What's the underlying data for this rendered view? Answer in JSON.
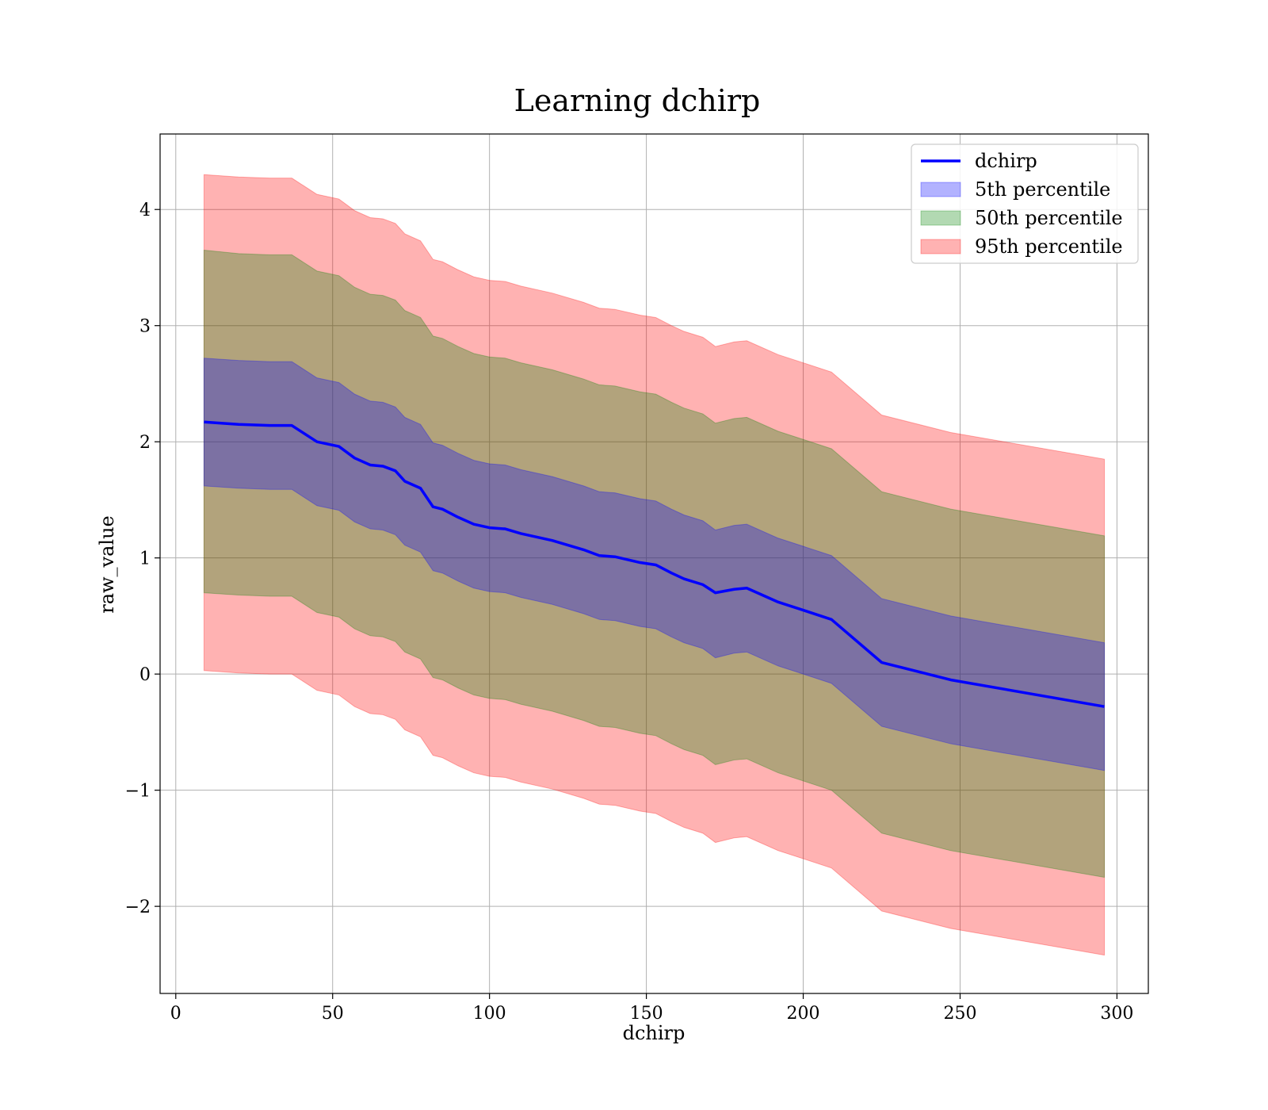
{
  "chart_data": {
    "type": "area",
    "title": "Learning dchirp",
    "xlabel": "dchirp",
    "ylabel": "raw_value",
    "xlim": [
      -5,
      310
    ],
    "ylim": [
      -2.75,
      4.65
    ],
    "xticks": [
      0,
      50,
      100,
      150,
      200,
      250,
      300
    ],
    "yticks": [
      -2,
      -1,
      0,
      1,
      2,
      3,
      4
    ],
    "xtick_labels": [
      "0",
      "50",
      "100",
      "150",
      "200",
      "250",
      "300"
    ],
    "ytick_labels": [
      "−2",
      "−1",
      "0",
      "1",
      "2",
      "3",
      "4"
    ],
    "grid": true,
    "legend_position": "top-right",
    "x": [
      9,
      20,
      30,
      37,
      45,
      52,
      57,
      62,
      66,
      70,
      73,
      78,
      82,
      85,
      90,
      95,
      100,
      105,
      110,
      120,
      130,
      135,
      140,
      148,
      153,
      158,
      162,
      168,
      172,
      178,
      182,
      192,
      200,
      209,
      225,
      247,
      296
    ],
    "series": [
      {
        "name": "dchirp",
        "kind": "line",
        "color": "#0000ff",
        "values": [
          2.17,
          2.15,
          2.14,
          2.14,
          2.0,
          1.96,
          1.86,
          1.8,
          1.79,
          1.75,
          1.66,
          1.6,
          1.44,
          1.42,
          1.35,
          1.29,
          1.26,
          1.25,
          1.21,
          1.15,
          1.07,
          1.02,
          1.01,
          0.96,
          0.94,
          0.87,
          0.82,
          0.77,
          0.7,
          0.73,
          0.74,
          0.62,
          0.55,
          0.47,
          0.1,
          -0.05,
          -0.28
        ]
      },
      {
        "name": "5th percentile",
        "kind": "band",
        "color": "#0000ff",
        "lower": [
          1.62,
          1.6,
          1.59,
          1.59,
          1.45,
          1.41,
          1.31,
          1.25,
          1.24,
          1.2,
          1.11,
          1.05,
          0.89,
          0.87,
          0.8,
          0.74,
          0.71,
          0.7,
          0.66,
          0.6,
          0.52,
          0.47,
          0.46,
          0.41,
          0.39,
          0.32,
          0.27,
          0.22,
          0.14,
          0.18,
          0.19,
          0.07,
          0.0,
          -0.08,
          -0.45,
          -0.6,
          -0.83
        ],
        "upper": [
          2.72,
          2.7,
          2.69,
          2.69,
          2.55,
          2.51,
          2.41,
          2.35,
          2.34,
          2.3,
          2.21,
          2.15,
          1.99,
          1.97,
          1.9,
          1.84,
          1.81,
          1.8,
          1.76,
          1.7,
          1.62,
          1.57,
          1.56,
          1.51,
          1.49,
          1.42,
          1.37,
          1.32,
          1.24,
          1.28,
          1.29,
          1.17,
          1.1,
          1.02,
          0.65,
          0.5,
          0.27
        ]
      },
      {
        "name": "50th percentile",
        "kind": "band",
        "color": "#008000",
        "lower": [
          0.7,
          0.68,
          0.67,
          0.67,
          0.53,
          0.49,
          0.39,
          0.33,
          0.32,
          0.28,
          0.19,
          0.13,
          -0.03,
          -0.05,
          -0.12,
          -0.18,
          -0.21,
          -0.22,
          -0.26,
          -0.32,
          -0.4,
          -0.45,
          -0.46,
          -0.51,
          -0.53,
          -0.6,
          -0.65,
          -0.7,
          -0.78,
          -0.74,
          -0.73,
          -0.85,
          -0.92,
          -1.0,
          -1.37,
          -1.52,
          -1.75
        ],
        "upper": [
          3.65,
          3.62,
          3.61,
          3.61,
          3.47,
          3.43,
          3.33,
          3.27,
          3.26,
          3.22,
          3.13,
          3.07,
          2.91,
          2.89,
          2.82,
          2.76,
          2.73,
          2.72,
          2.68,
          2.62,
          2.54,
          2.49,
          2.48,
          2.43,
          2.41,
          2.34,
          2.29,
          2.24,
          2.16,
          2.2,
          2.21,
          2.09,
          2.02,
          1.94,
          1.57,
          1.42,
          1.19
        ]
      },
      {
        "name": "95th percentile",
        "kind": "band",
        "color": "#ff0000",
        "lower": [
          0.03,
          0.01,
          0.0,
          0.0,
          -0.14,
          -0.18,
          -0.28,
          -0.34,
          -0.35,
          -0.39,
          -0.48,
          -0.54,
          -0.7,
          -0.72,
          -0.79,
          -0.85,
          -0.88,
          -0.89,
          -0.93,
          -0.99,
          -1.07,
          -1.12,
          -1.13,
          -1.18,
          -1.2,
          -1.27,
          -1.32,
          -1.37,
          -1.45,
          -1.41,
          -1.4,
          -1.52,
          -1.59,
          -1.67,
          -2.04,
          -2.19,
          -2.42
        ],
        "upper": [
          4.3,
          4.28,
          4.27,
          4.27,
          4.13,
          4.09,
          3.99,
          3.93,
          3.92,
          3.88,
          3.79,
          3.73,
          3.57,
          3.55,
          3.48,
          3.42,
          3.39,
          3.38,
          3.34,
          3.28,
          3.2,
          3.15,
          3.14,
          3.09,
          3.07,
          3.0,
          2.95,
          2.9,
          2.82,
          2.86,
          2.87,
          2.75,
          2.68,
          2.6,
          2.23,
          2.08,
          1.85
        ]
      }
    ]
  }
}
